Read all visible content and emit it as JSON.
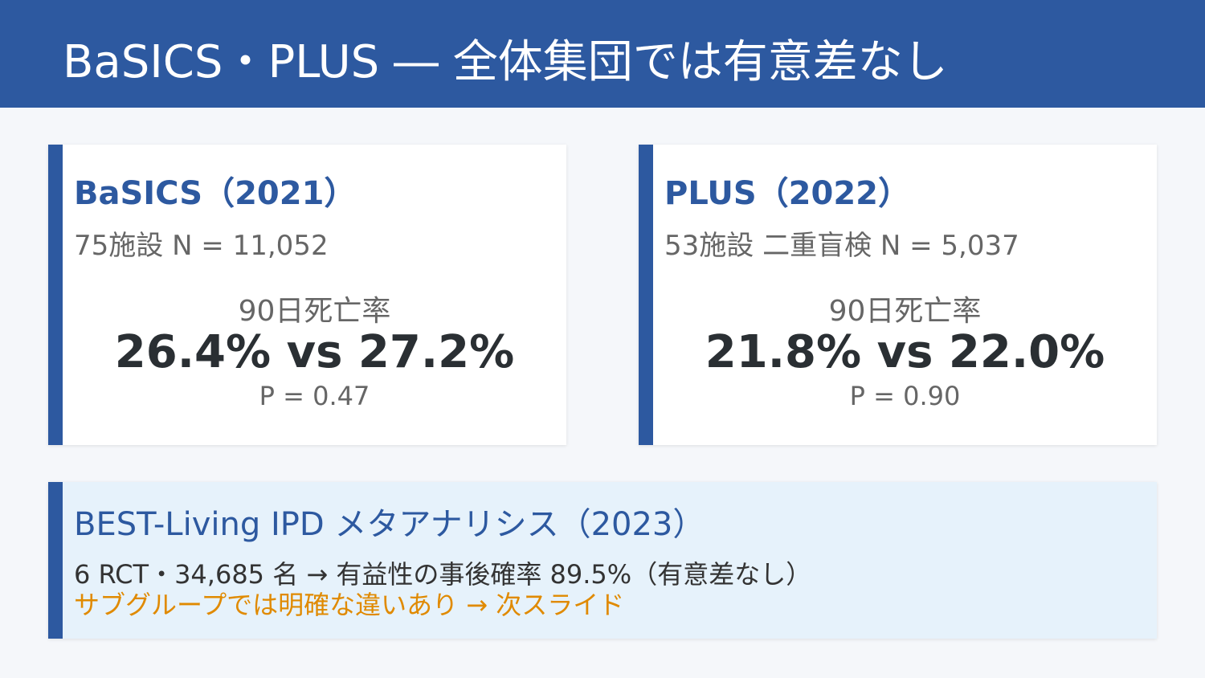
{
  "header": {
    "title": "BaSICS・PLUS ― 全体集団では有意差なし"
  },
  "cards": [
    {
      "title": "BaSICS（2021）",
      "meta": "75施設  N = 11,052",
      "metric_label": "90日死亡率",
      "result": "26.4% vs 27.2%",
      "p_value": "P = 0.47"
    },
    {
      "title": "PLUS（2022）",
      "meta": "53施設 二重盲検  N = 5,037",
      "metric_label": "90日死亡率",
      "result": "21.8% vs 22.0%",
      "p_value": "P = 0.90"
    }
  ],
  "summary": {
    "title": "BEST-Living IPD メタアナリシス（2023）",
    "line1": "6 RCT・34,685 名 → 有益性の事後確率 89.5%（有意差なし）",
    "line2": "サブグループでは明確な違いあり → 次スライド"
  }
}
